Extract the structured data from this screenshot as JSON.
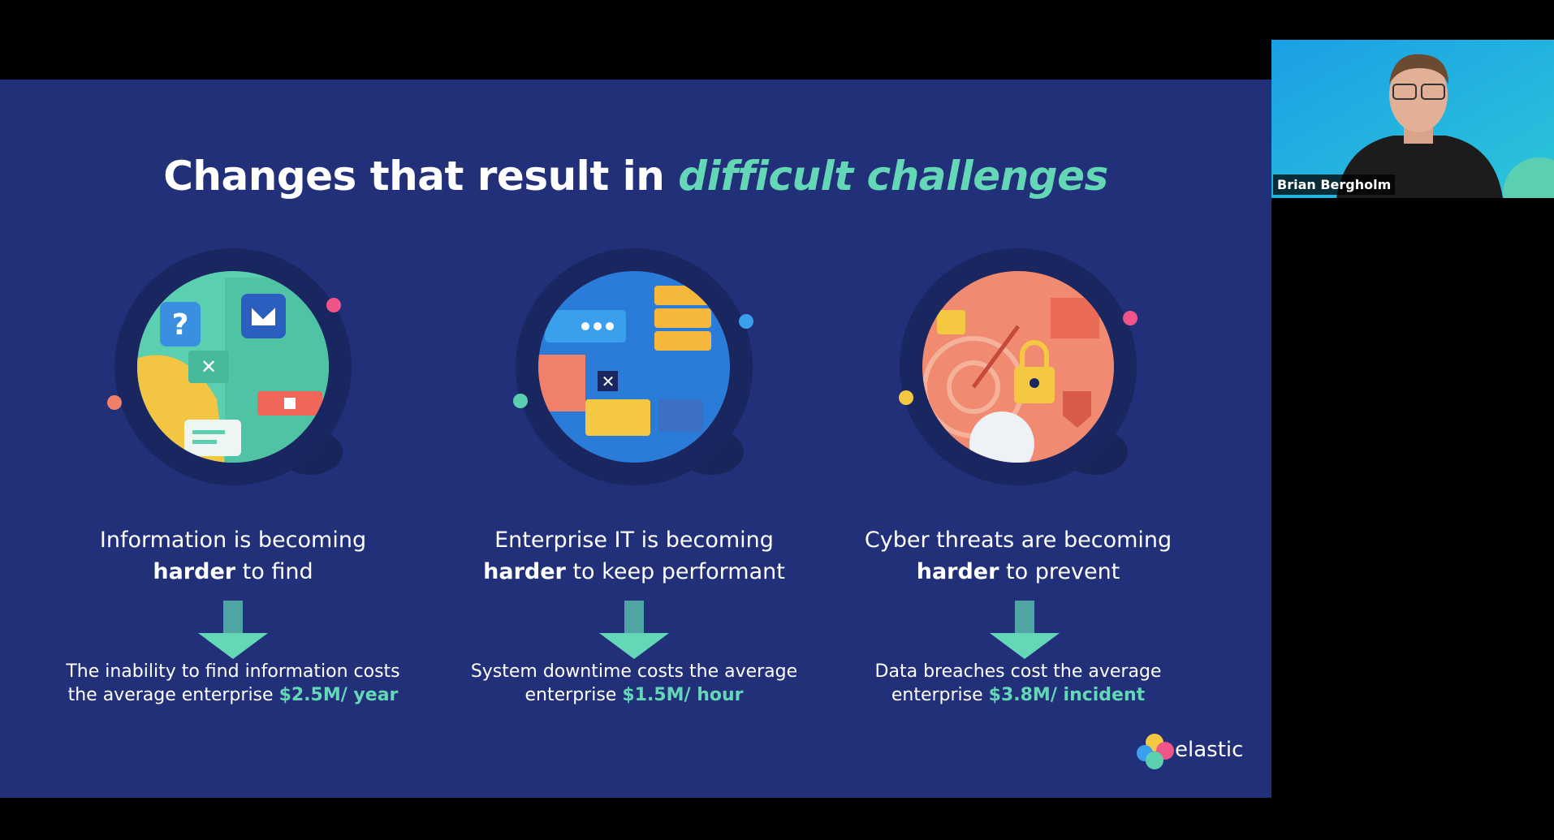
{
  "slide": {
    "title": {
      "text": "Changes that result in",
      "emphasis": "difficult challenges"
    },
    "columns": [
      {
        "line1": "Information is becoming",
        "bold": "harder",
        "rest": "to find",
        "cost_line1": "The inability to find information costs",
        "cost_line2": "the average enterprise",
        "cost": "$2.5M/ year"
      },
      {
        "line1": "Enterprise IT is becoming",
        "bold": "harder",
        "rest": "to keep performant",
        "cost_line1": "System downtime costs the average",
        "cost_line2": "enterprise",
        "cost": "$1.5M/ hour"
      },
      {
        "line1": "Cyber threats are becoming",
        "bold": "harder",
        "rest": "to prevent",
        "cost_line1": "Data breaches cost the average",
        "cost_line2": "enterprise",
        "cost": "$3.8M/ incident"
      }
    ],
    "logo": "elastic"
  },
  "participant": {
    "name": "Brian Bergholm"
  }
}
